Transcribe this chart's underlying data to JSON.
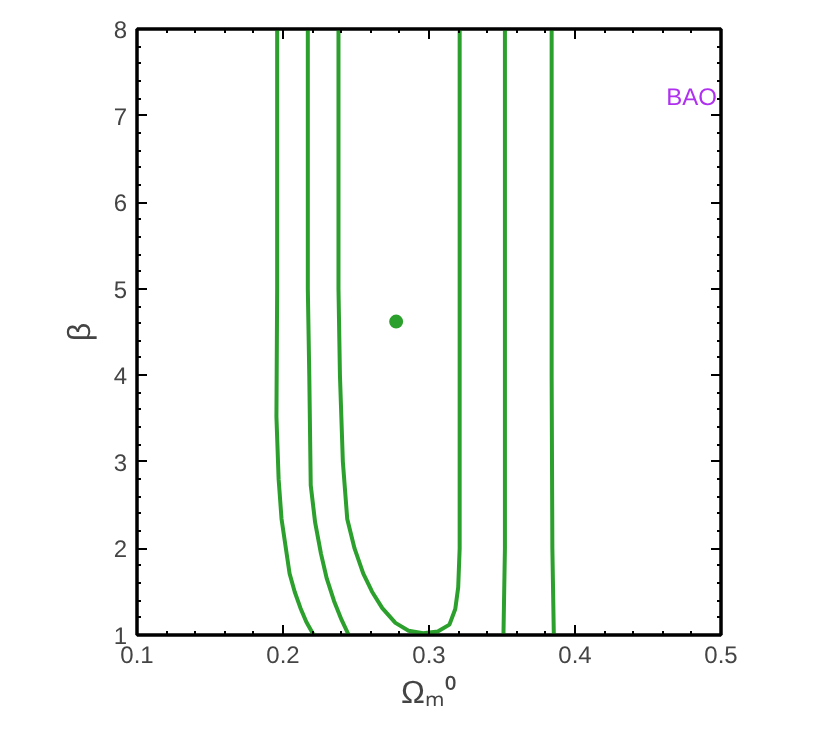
{
  "chart_data": {
    "type": "line",
    "xlabel": "Ωₘ⁰",
    "ylabel": "β",
    "annotations": [
      "BAO"
    ],
    "xlim": [
      0.1,
      0.5
    ],
    "xticks": [
      0.1,
      0.2,
      0.3,
      0.4,
      0.5
    ],
    "ylim": [
      1,
      8
    ],
    "yticks": [
      1,
      2,
      3,
      4,
      5,
      6,
      7,
      8
    ],
    "grid": false,
    "series": [
      {
        "color": "#2ca02c",
        "x": [
          0.238,
          0.238,
          0.239,
          0.241,
          0.244,
          0.249,
          0.255,
          0.261,
          0.268,
          0.277,
          0.286,
          0.296,
          0.306,
          0.314,
          0.318,
          0.32,
          0.321,
          0.321,
          0.321
        ],
        "values": [
          8,
          5,
          4,
          3,
          2.34,
          2.0,
          1.71,
          1.5,
          1.31,
          1.14,
          1.05,
          1.02,
          1.04,
          1.12,
          1.3,
          1.55,
          2,
          4,
          8
        ]
      },
      {
        "color": "#2ca02c",
        "x": [
          0.217,
          0.217,
          0.218,
          0.219,
          0.222,
          0.226,
          0.23,
          0.235,
          0.24,
          0.245
        ],
        "values": [
          8,
          5,
          4,
          2.73,
          2.3,
          1.94,
          1.65,
          1.39,
          1.18,
          1.0
        ]
      },
      {
        "color": "#2ca02c",
        "x": [
          0.352,
          0.352,
          0.352,
          0.351
        ],
        "values": [
          8,
          4,
          2,
          1.0
        ]
      },
      {
        "color": "#2ca02c",
        "x": [
          0.196,
          0.196,
          0.1955,
          0.197,
          0.199,
          0.2045,
          0.208,
          0.212,
          0.216,
          0.221
        ],
        "values": [
          8,
          5,
          3.52,
          2.8,
          2.34,
          1.71,
          1.5,
          1.31,
          1.15,
          1.0
        ]
      },
      {
        "color": "#2ca02c",
        "x": [
          0.384,
          0.384,
          0.3845,
          0.3855
        ],
        "values": [
          8,
          4,
          2,
          1.0
        ]
      },
      {
        "type": "scatter",
        "marker": "circle",
        "color": "#2ca02c",
        "x": [
          0.2775
        ],
        "values": [
          4.62
        ]
      }
    ]
  }
}
